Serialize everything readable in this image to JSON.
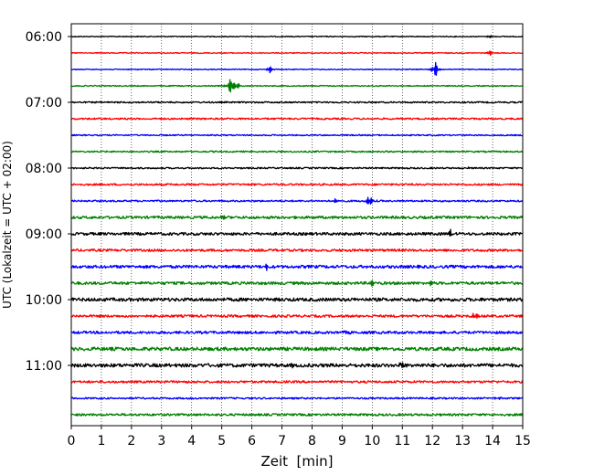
{
  "chart_data": {
    "type": "line",
    "title": "",
    "xlabel": "Zeit  [min]",
    "ylabel": "UTC (Lokalzeit = UTC + 02:00)",
    "xlim": [
      0,
      15
    ],
    "x_ticks": [
      "0",
      "1",
      "2",
      "3",
      "4",
      "5",
      "6",
      "7",
      "8",
      "9",
      "10",
      "11",
      "12",
      "13",
      "14",
      "15"
    ],
    "y_ticks": [
      "06:00",
      "07:00",
      "08:00",
      "09:00",
      "10:00",
      "11:00"
    ],
    "grid": "vertical dotted",
    "trace_interval_min": 15,
    "colors": [
      "#000000",
      "#ff0000",
      "#0000ff",
      "#008000"
    ],
    "traces": [
      {
        "start": "06:00",
        "color": "#000000",
        "noise": 0.5,
        "events": [
          {
            "t": 13.9,
            "amp": 1.5
          }
        ]
      },
      {
        "start": "06:15",
        "color": "#ff0000",
        "noise": 0.5,
        "events": [
          {
            "t": 13.9,
            "amp": 3.5
          }
        ]
      },
      {
        "start": "06:30",
        "color": "#0000ff",
        "noise": 0.5,
        "events": [
          {
            "t": 6.6,
            "amp": 4
          },
          {
            "t": 12.1,
            "amp": 9
          }
        ]
      },
      {
        "start": "06:45",
        "color": "#008000",
        "noise": 0.6,
        "events": [
          {
            "t": 5.3,
            "amp": 10
          },
          {
            "t": 5.5,
            "amp": 4
          }
        ]
      },
      {
        "start": "07:00",
        "color": "#000000",
        "noise": 0.8,
        "events": []
      },
      {
        "start": "07:15",
        "color": "#ff0000",
        "noise": 0.9,
        "events": []
      },
      {
        "start": "07:30",
        "color": "#0000ff",
        "noise": 0.7,
        "events": []
      },
      {
        "start": "07:45",
        "color": "#008000",
        "noise": 0.8,
        "events": []
      },
      {
        "start": "08:00",
        "color": "#000000",
        "noise": 0.8,
        "events": [
          {
            "t": 13.3,
            "amp": 2
          }
        ]
      },
      {
        "start": "08:15",
        "color": "#ff0000",
        "noise": 1.0,
        "events": []
      },
      {
        "start": "08:30",
        "color": "#0000ff",
        "noise": 0.9,
        "events": [
          {
            "t": 8.8,
            "amp": 3
          },
          {
            "t": 9.9,
            "amp": 7
          }
        ]
      },
      {
        "start": "08:45",
        "color": "#008000",
        "noise": 1.4,
        "events": [
          {
            "t": 5.0,
            "amp": 2.5
          }
        ]
      },
      {
        "start": "09:00",
        "color": "#000000",
        "noise": 1.5,
        "events": [
          {
            "t": 12.6,
            "amp": 4
          }
        ]
      },
      {
        "start": "09:15",
        "color": "#ff0000",
        "noise": 1.3,
        "events": []
      },
      {
        "start": "09:30",
        "color": "#0000ff",
        "noise": 1.6,
        "events": [
          {
            "t": 6.5,
            "amp": 3
          }
        ]
      },
      {
        "start": "09:45",
        "color": "#008000",
        "noise": 1.5,
        "events": [
          {
            "t": 10.0,
            "amp": 3
          },
          {
            "t": 11.9,
            "amp": 3
          }
        ]
      },
      {
        "start": "10:00",
        "color": "#000000",
        "noise": 1.8,
        "events": []
      },
      {
        "start": "10:15",
        "color": "#ff0000",
        "noise": 1.3,
        "events": [
          {
            "t": 13.4,
            "amp": 3.5
          }
        ]
      },
      {
        "start": "10:30",
        "color": "#0000ff",
        "noise": 1.4,
        "events": [
          {
            "t": 9.2,
            "amp": 2.5
          }
        ]
      },
      {
        "start": "10:45",
        "color": "#008000",
        "noise": 1.9,
        "events": []
      },
      {
        "start": "11:00",
        "color": "#000000",
        "noise": 1.9,
        "events": [
          {
            "t": 11.0,
            "amp": 4
          },
          {
            "t": 7.4,
            "amp": 3
          }
        ]
      },
      {
        "start": "11:15",
        "color": "#ff0000",
        "noise": 1.2,
        "events": []
      },
      {
        "start": "11:30",
        "color": "#0000ff",
        "noise": 0.9,
        "events": [
          {
            "t": 14.2,
            "amp": 2.5
          }
        ]
      },
      {
        "start": "11:45",
        "color": "#008000",
        "noise": 1.2,
        "events": []
      }
    ]
  }
}
